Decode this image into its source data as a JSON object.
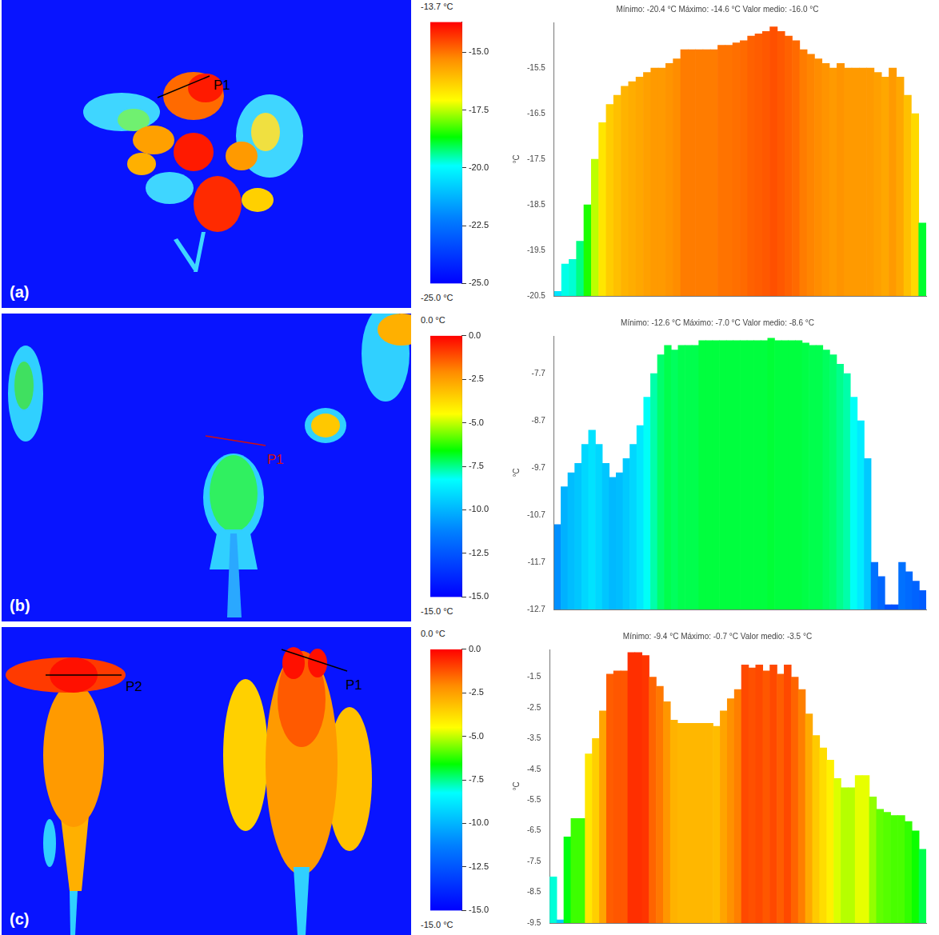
{
  "chart_data": [
    {
      "type": "bar",
      "panel_label": "(a)",
      "image_labels": [
        "P1"
      ],
      "title": "Mínimo: -20.4 °C Máximo: -14.6 °C Valor medio: -16.0 °C",
      "y_label": "°C",
      "grid": false,
      "tick_labels": "y",
      "ylim": [
        -20.5,
        -14.5
      ],
      "yticks": [
        -15.5,
        -16.5,
        -17.5,
        -18.5,
        -19.5,
        -20.5
      ],
      "values": [
        -20.4,
        -19.8,
        -19.7,
        -19.3,
        -18.5,
        -17.5,
        -16.7,
        -16.3,
        -16.1,
        -15.9,
        -15.8,
        -15.7,
        -15.6,
        -15.5,
        -15.5,
        -15.4,
        -15.3,
        -15.1,
        -15.1,
        -15.1,
        -15.1,
        -15.1,
        -15.0,
        -15.0,
        -14.95,
        -14.9,
        -14.8,
        -14.75,
        -14.7,
        -14.6,
        -14.7,
        -14.8,
        -14.9,
        -15.1,
        -15.2,
        -15.3,
        -15.4,
        -15.5,
        -15.4,
        -15.5,
        -15.5,
        -15.5,
        -15.5,
        -15.6,
        -15.7,
        -15.5,
        -15.7,
        -16.1,
        -16.5,
        -18.9
      ],
      "colorbar": {
        "range": [
          -25.0,
          -13.7
        ],
        "top_label": "-13.7 °C",
        "bottom_label": "-25.0 °C",
        "ticks": [
          {
            "value": -15,
            "label": "-15.0"
          },
          -17.5,
          {
            "value": -20,
            "label": "-20.0"
          },
          -22.5,
          {
            "value": -25,
            "label": "-25.0"
          }
        ]
      }
    },
    {
      "type": "bar",
      "panel_label": "(b)",
      "image_labels": [
        "P1"
      ],
      "title": "Mínimo: -12.6 °C Máximo: -7.0 °C Valor medio: -8.6 °C",
      "y_label": "°C",
      "grid": false,
      "tick_labels": "y",
      "ylim": [
        -12.7,
        -6.9
      ],
      "yticks": [
        -7.7,
        -8.7,
        -9.7,
        -10.7,
        -11.7,
        -12.7
      ],
      "values": [
        -10.9,
        -10.1,
        -9.8,
        -9.6,
        -9.2,
        -8.9,
        -9.2,
        -9.6,
        -9.9,
        -9.8,
        -9.5,
        -9.2,
        -8.8,
        -8.2,
        -7.7,
        -7.3,
        -7.1,
        -7.2,
        -7.1,
        -7.1,
        -7.1,
        -7.0,
        -7.0,
        -7.0,
        -7.0,
        -7.0,
        -7.0,
        -7.0,
        -7.0,
        -7.0,
        -7.0,
        -6.95,
        -7.0,
        -7.0,
        -7.0,
        -7.0,
        -7.05,
        -7.1,
        -7.1,
        -7.2,
        -7.3,
        -7.5,
        -7.7,
        -8.2,
        -8.7,
        -9.5,
        -11.7,
        -12.0,
        -12.6,
        -12.6,
        -11.7,
        -11.9,
        -12.1,
        -12.3
      ],
      "colorbar": {
        "range": [
          -15.0,
          0.0
        ],
        "top_label": "0.0 °C",
        "bottom_label": "-15.0 °C",
        "ticks": [
          {
            "value": 0,
            "label": "0.0"
          },
          -2.5,
          {
            "value": -5,
            "label": "-5.0"
          },
          -7.5,
          {
            "value": -10,
            "label": "-10.0"
          },
          -12.5,
          {
            "value": -15,
            "label": "-15.0"
          }
        ]
      }
    },
    {
      "type": "bar",
      "panel_label": "(c)",
      "image_labels": [
        "P2",
        "P1"
      ],
      "title": "Mínimo: -9.4 °C Máximo: -0.7 °C Valor medio: -3.5 °C",
      "y_label": "°C",
      "grid": false,
      "tick_labels": "y",
      "ylim": [
        -9.5,
        -0.6
      ],
      "yticks": [
        -1.5,
        -2.5,
        -3.5,
        -4.5,
        -5.5,
        -6.5,
        -7.5,
        -8.5,
        -9.5
      ],
      "values": [
        -8.0,
        -9.4,
        -6.7,
        -6.1,
        -6.1,
        -4.0,
        -3.5,
        -2.6,
        -1.4,
        -1.3,
        -1.3,
        -0.7,
        -0.7,
        -0.8,
        -1.5,
        -1.8,
        -2.3,
        -2.9,
        -3.0,
        -3.0,
        -3.0,
        -3.0,
        -3.0,
        -3.1,
        -2.6,
        -2.2,
        -1.9,
        -1.1,
        -1.2,
        -1.1,
        -1.3,
        -1.1,
        -1.4,
        -1.1,
        -1.5,
        -1.9,
        -2.7,
        -3.4,
        -3.8,
        -4.2,
        -4.8,
        -5.1,
        -5.1,
        -4.7,
        -4.7,
        -5.4,
        -5.8,
        -5.9,
        -6.0,
        -6.0,
        -6.2,
        -6.5,
        -7.1
      ],
      "colorbar": {
        "range": [
          -15.0,
          0.0
        ],
        "top_label": "0.0 °C",
        "bottom_label": "-15.0 °C",
        "ticks": [
          {
            "value": 0,
            "label": "0.0"
          },
          -2.5,
          {
            "value": -5,
            "label": "-5.0"
          },
          -7.5,
          {
            "value": -10,
            "label": "-10.0"
          },
          -12.5,
          {
            "value": -15,
            "label": "-15.0"
          }
        ]
      }
    }
  ]
}
